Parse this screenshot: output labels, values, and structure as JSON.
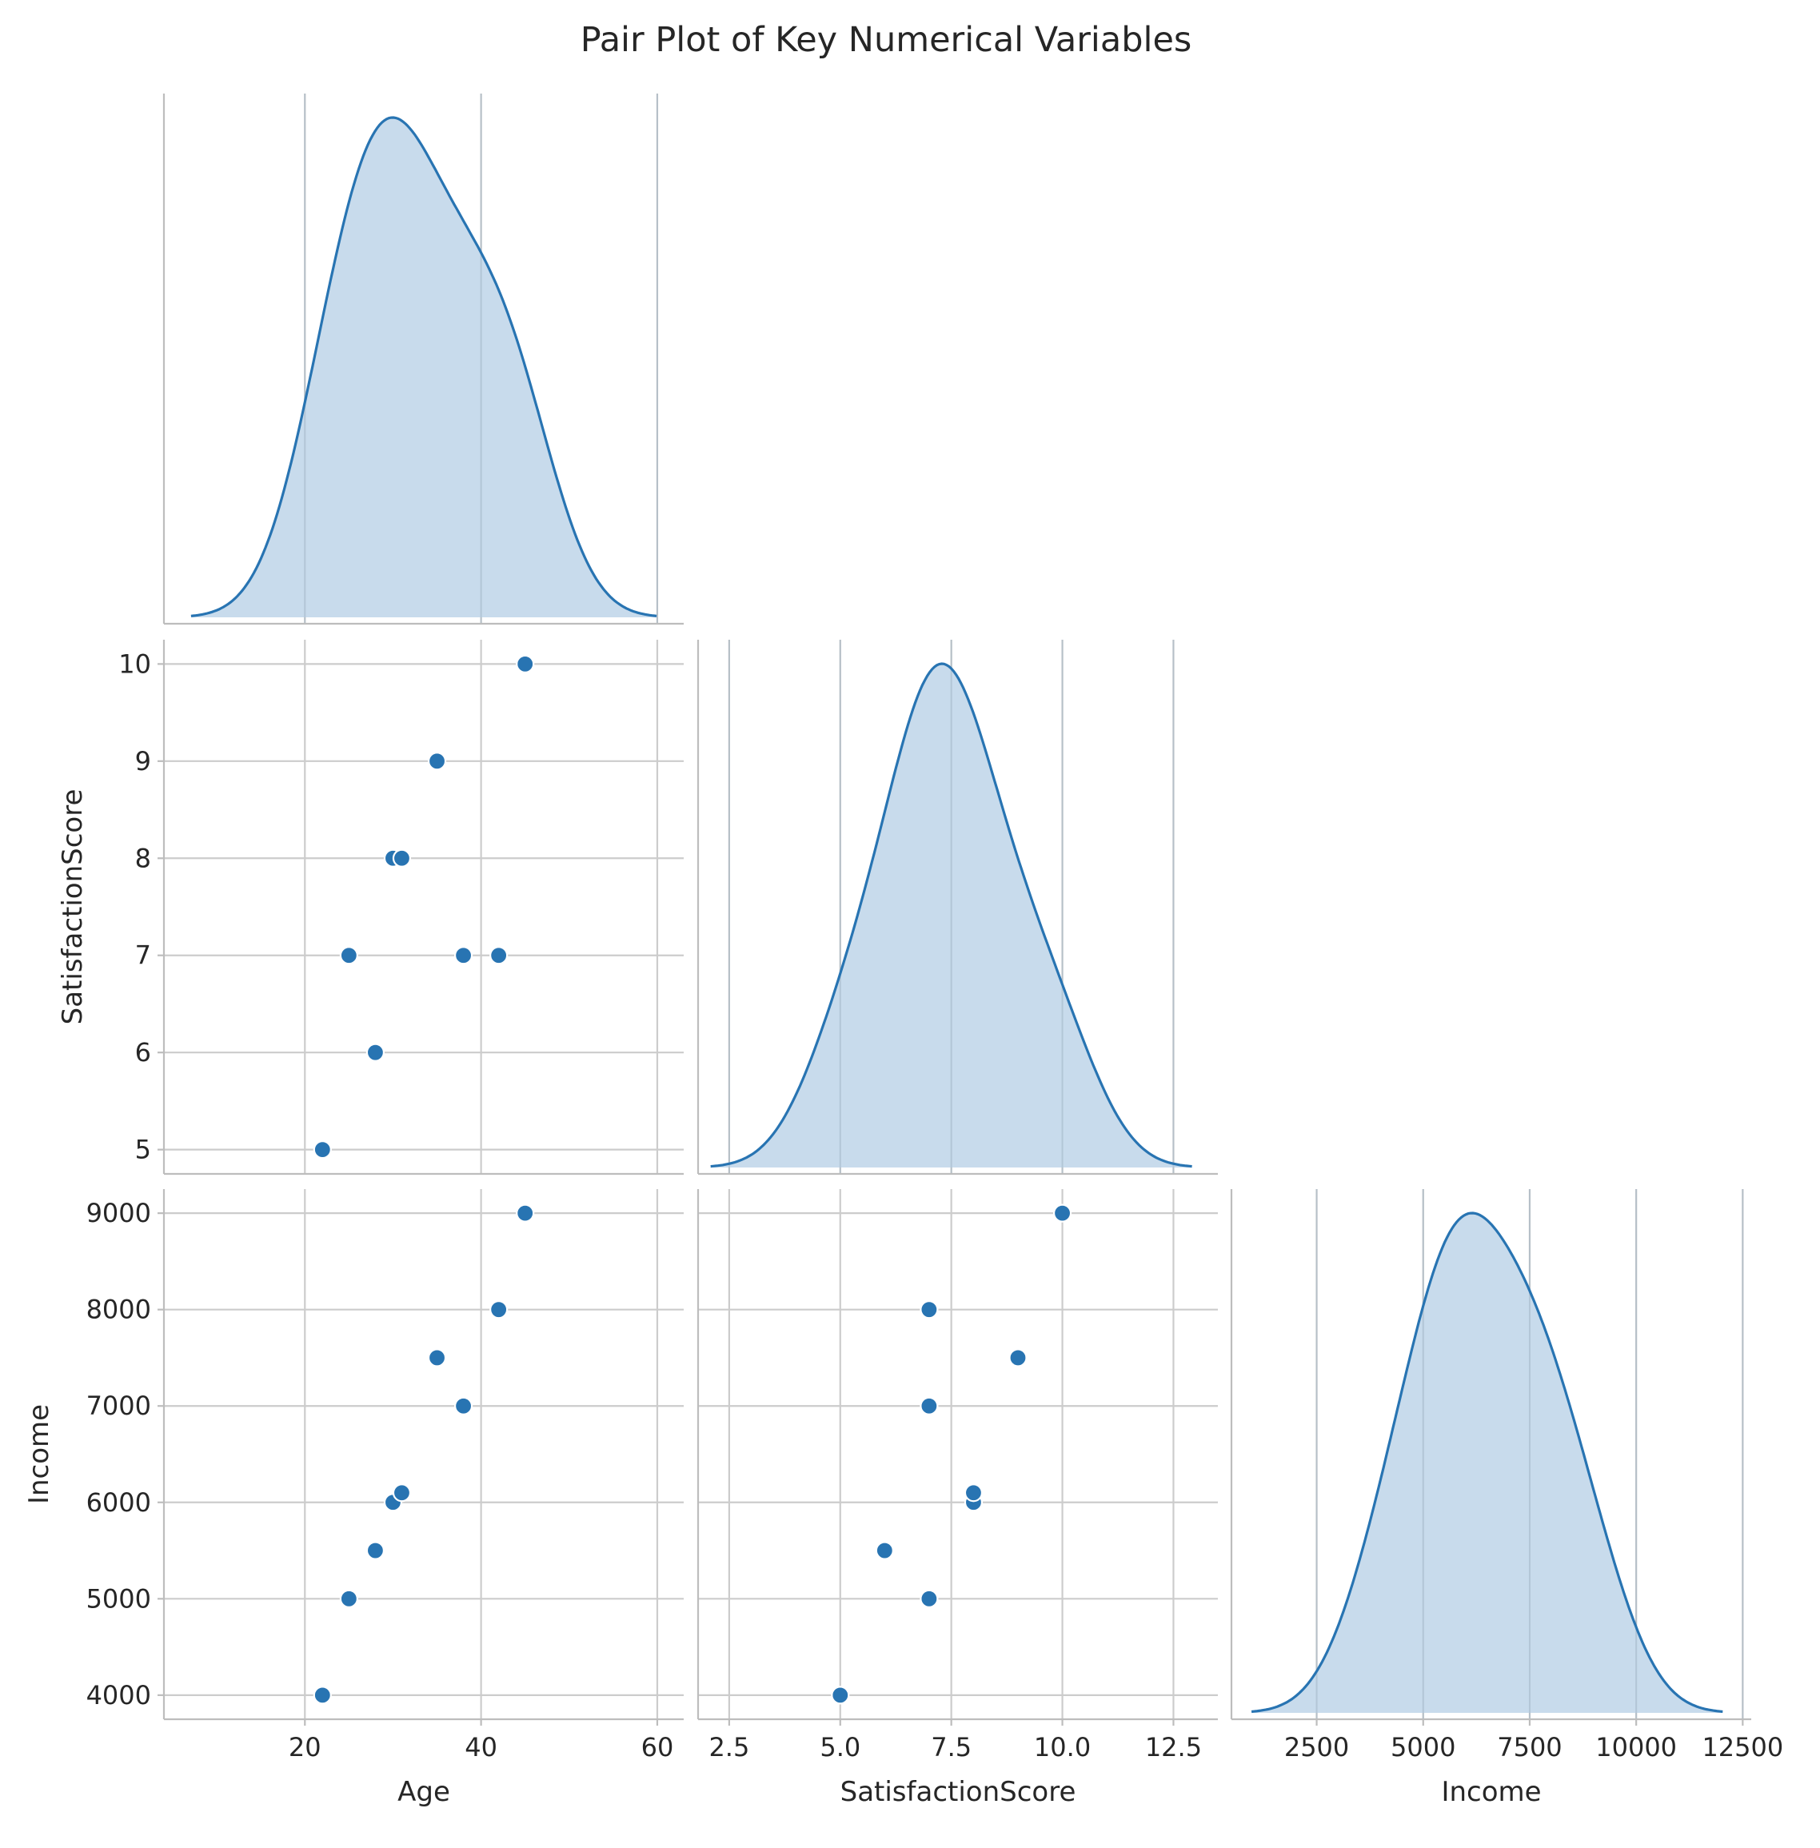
{
  "chart_data": {
    "type": "pairplot",
    "title": "Pair Plot of Key Numerical Variables",
    "variables": [
      "Age",
      "SatisfactionScore",
      "Income"
    ],
    "corner": true,
    "diagonal": "kde",
    "grid": true,
    "color": "#2874b2",
    "kde_fill_color": "#c5d9eb",
    "observations": [
      {
        "Age": 22,
        "SatisfactionScore": 5,
        "Income": 4000
      },
      {
        "Age": 25,
        "SatisfactionScore": 7,
        "Income": 5000
      },
      {
        "Age": 28,
        "SatisfactionScore": 6,
        "Income": 5500
      },
      {
        "Age": 30,
        "SatisfactionScore": 8,
        "Income": 6000
      },
      {
        "Age": 31,
        "SatisfactionScore": 8,
        "Income": 6100
      },
      {
        "Age": 35,
        "SatisfactionScore": 9,
        "Income": 7500
      },
      {
        "Age": 38,
        "SatisfactionScore": 7,
        "Income": 7000
      },
      {
        "Age": 42,
        "SatisfactionScore": 7,
        "Income": 8000
      },
      {
        "Age": 45,
        "SatisfactionScore": 10,
        "Income": 9000
      }
    ],
    "axes": {
      "Age": {
        "label": "Age",
        "range": [
          4,
          63
        ],
        "ticks": [
          20,
          40,
          60
        ],
        "tick_labels": [
          "20",
          "40",
          "60"
        ]
      },
      "SatisfactionScore": {
        "label": "SatisfactionScore",
        "range": [
          1.8,
          13.5
        ],
        "ticks": [
          2.5,
          5.0,
          7.5,
          10.0,
          12.5
        ],
        "tick_labels": [
          "2.5",
          "5.0",
          "7.5",
          "10.0",
          "12.5"
        ]
      },
      "Income": {
        "label": "Income",
        "range": [
          500,
          12700
        ],
        "ticks": [
          2500,
          5000,
          7500,
          10000,
          12500
        ],
        "tick_labels": [
          "2500",
          "5000",
          "7500",
          "10000",
          "12500"
        ]
      }
    },
    "scatter_y_axes": {
      "SatisfactionScore": {
        "label": "SatisfactionScore",
        "range": [
          4.75,
          10.25
        ],
        "ticks": [
          5,
          6,
          7,
          8,
          9,
          10
        ],
        "tick_labels": [
          "5",
          "6",
          "7",
          "8",
          "9",
          "10"
        ]
      },
      "Income": {
        "label": "Income",
        "range": [
          3750,
          9250
        ],
        "ticks": [
          4000,
          5000,
          6000,
          7000,
          8000,
          9000
        ],
        "tick_labels": [
          "4000",
          "5000",
          "6000",
          "7000",
          "8000",
          "9000"
        ]
      }
    }
  }
}
